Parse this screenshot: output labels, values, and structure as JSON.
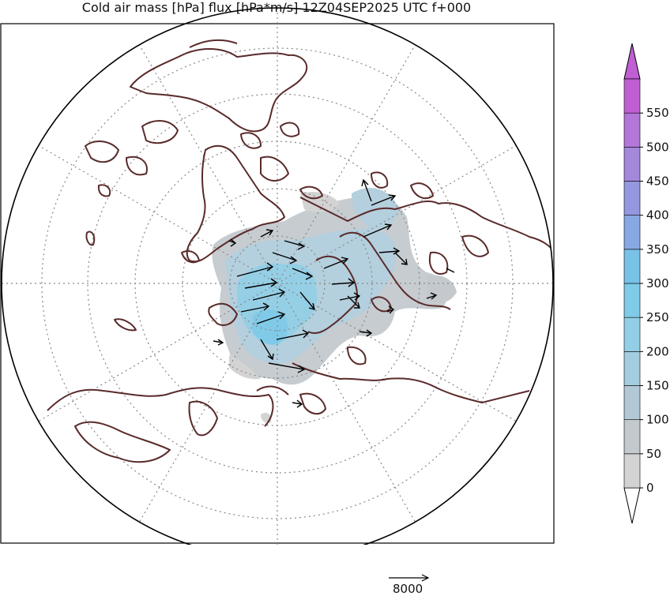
{
  "title": "Cold air mass [hPa] flux [hPa*m/s] 12Z04SEP2025 UTC f+000",
  "colorbar": {
    "ticks": [
      "0",
      "50",
      "100",
      "150",
      "200",
      "250",
      "300",
      "350",
      "400",
      "450",
      "500",
      "550"
    ],
    "colors": [
      "#d3d3d3",
      "#c4c9cd",
      "#b2c8d6",
      "#a3cde0",
      "#92cfe6",
      "#7fcbe8",
      "#78c2e8",
      "#88a8e4",
      "#9597e0",
      "#a488dc",
      "#b277d8",
      "#c05fd3"
    ]
  },
  "reference_vector": {
    "label": "8000"
  },
  "colors": {
    "coastline": "#5a2a2a",
    "grid": "#888888",
    "frame": "#000000",
    "vectors": "#000000"
  }
}
